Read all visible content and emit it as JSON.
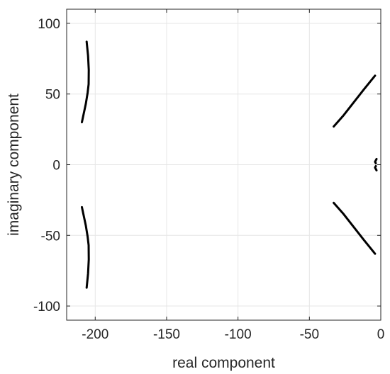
{
  "chart_data": {
    "type": "line",
    "xlabel": "real component",
    "ylabel": "imaginary component",
    "xlim": [
      -220,
      0
    ],
    "ylim": [
      -110,
      110
    ],
    "xticks": [
      -200,
      -150,
      -100,
      -50,
      0
    ],
    "yticks": [
      -100,
      -50,
      0,
      50,
      100
    ],
    "grid": true,
    "line_color": "#000000",
    "series": [
      {
        "x": [
          -206,
          -205,
          -204.5,
          -204.6,
          -205.3,
          -206.6,
          -208.3,
          -209.3
        ],
        "y": [
          87,
          77,
          67,
          57,
          51,
          43,
          35,
          30
        ]
      },
      {
        "x": [
          -209.3,
          -208.3,
          -206.6,
          -205.3,
          -204.6,
          -204.5,
          -205,
          -206
        ],
        "y": [
          -30,
          -35,
          -43,
          -51,
          -57,
          -67,
          -77,
          -87
        ]
      },
      {
        "x": [
          -33,
          -26,
          -19,
          -12,
          -4
        ],
        "y": [
          27,
          35,
          44,
          53,
          63
        ]
      },
      {
        "x": [
          -33,
          -26,
          -19,
          -12,
          -4
        ],
        "y": [
          -27,
          -35,
          -44,
          -53,
          -63
        ]
      },
      {
        "x": [
          -3,
          -4,
          -3.5
        ],
        "y": [
          4,
          2,
          1
        ]
      },
      {
        "x": [
          -3.5,
          -4,
          -3
        ],
        "y": [
          -1,
          -2,
          -4
        ]
      }
    ]
  }
}
